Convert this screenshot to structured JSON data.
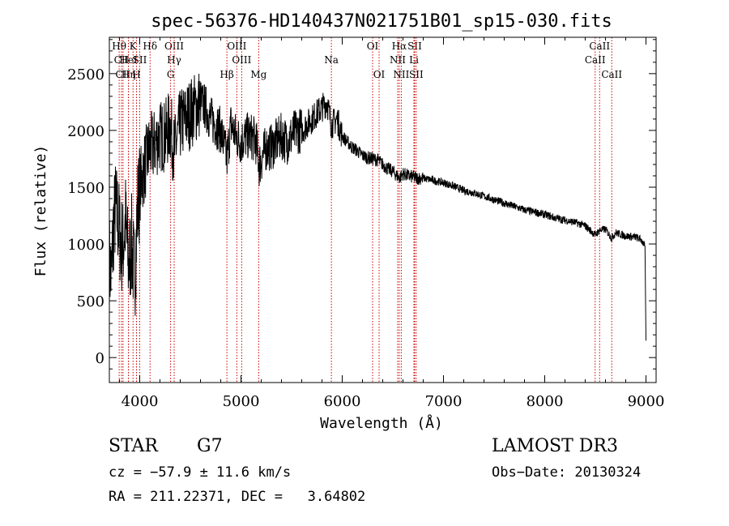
{
  "chart_data": {
    "type": "line",
    "title": "spec-56376-HD140437N021751B01_sp15-030.fits",
    "xlabel": "Wavelength (Å)",
    "ylabel": "Flux (relative)",
    "xlim": [
      3700,
      9100
    ],
    "ylim": [
      -220,
      2820
    ],
    "x_ticks": [
      4000,
      5000,
      6000,
      7000,
      8000,
      9000
    ],
    "y_ticks": [
      0,
      500,
      1000,
      1500,
      2000,
      2500
    ],
    "grid": false,
    "series": [
      {
        "name": "flux",
        "x": [
          3700,
          3720,
          3740,
          3760,
          3780,
          3800,
          3830,
          3860,
          3890,
          3920,
          3950,
          3980,
          4010,
          4040,
          4070,
          4100,
          4130,
          4160,
          4200,
          4250,
          4300,
          4340,
          4400,
          4450,
          4500,
          4550,
          4600,
          4650,
          4700,
          4750,
          4800,
          4861,
          4900,
          4950,
          5000,
          5050,
          5100,
          5150,
          5180,
          5250,
          5300,
          5350,
          5400,
          5450,
          5500,
          5550,
          5600,
          5650,
          5700,
          5750,
          5800,
          5850,
          5893,
          5950,
          6000,
          6050,
          6100,
          6150,
          6200,
          6250,
          6300,
          6350,
          6400,
          6450,
          6500,
          6563,
          6600,
          6650,
          6700,
          6750,
          6800,
          6900,
          7000,
          7100,
          7200,
          7300,
          7400,
          7500,
          7600,
          7700,
          7800,
          7900,
          8000,
          8100,
          8200,
          8300,
          8400,
          8498,
          8542,
          8600,
          8662,
          8700,
          8800,
          8900,
          8950,
          8990,
          9000
        ],
        "y": [
          850,
          700,
          1150,
          1300,
          1250,
          1100,
          950,
          1200,
          800,
          1000,
          700,
          1350,
          1550,
          1650,
          1750,
          1850,
          1850,
          1900,
          1950,
          1950,
          2050,
          1800,
          2050,
          2100,
          2150,
          2200,
          2250,
          2200,
          2100,
          2050,
          2000,
          1750,
          2050,
          1950,
          1900,
          1950,
          1950,
          1900,
          1700,
          1850,
          1850,
          1900,
          1950,
          1900,
          1950,
          2000,
          2000,
          2050,
          2100,
          2150,
          2200,
          2250,
          2050,
          2100,
          1950,
          1900,
          1850,
          1820,
          1780,
          1760,
          1750,
          1740,
          1700,
          1660,
          1640,
          1580,
          1620,
          1600,
          1590,
          1580,
          1580,
          1560,
          1540,
          1510,
          1470,
          1450,
          1420,
          1390,
          1360,
          1330,
          1300,
          1280,
          1260,
          1230,
          1210,
          1190,
          1160,
          1080,
          1120,
          1130,
          1050,
          1100,
          1070,
          1060,
          1040,
          980,
          150
        ]
      }
    ],
    "line_markers": [
      {
        "name": "Hθ",
        "wavelength": 3797,
        "row": 1
      },
      {
        "name": "CII",
        "wavelength": 3820,
        "row": 2
      },
      {
        "name": "CII",
        "wavelength": 3835,
        "row": 3
      },
      {
        "name": "Hη",
        "wavelength": 3889,
        "row": 3
      },
      {
        "name": "HeI",
        "wavelength": 3888,
        "row": 2
      },
      {
        "name": "K",
        "wavelength": 3934,
        "row": 1
      },
      {
        "name": "SII",
        "wavelength": 4000,
        "row": 2
      },
      {
        "name": "H",
        "wavelength": 3968,
        "row": 3
      },
      {
        "name": "Hδ",
        "wavelength": 4102,
        "row": 1
      },
      {
        "name": "OIII",
        "wavelength": 4340,
        "row": 1
      },
      {
        "name": "Hγ",
        "wavelength": 4340,
        "row": 2
      },
      {
        "name": "G",
        "wavelength": 4305,
        "row": 3
      },
      {
        "name": "Hβ",
        "wavelength": 4861,
        "row": 3
      },
      {
        "name": "OIII",
        "wavelength": 4959,
        "row": 1
      },
      {
        "name": "OIII",
        "wavelength": 5007,
        "row": 2
      },
      {
        "name": "Mg",
        "wavelength": 5175,
        "row": 3
      },
      {
        "name": "Na",
        "wavelength": 5893,
        "row": 2
      },
      {
        "name": "OI",
        "wavelength": 6300,
        "row": 1
      },
      {
        "name": "OI",
        "wavelength": 6364,
        "row": 3
      },
      {
        "name": "Hα",
        "wavelength": 6563,
        "row": 1
      },
      {
        "name": "SII",
        "wavelength": 6716,
        "row": 1
      },
      {
        "name": "NII",
        "wavelength": 6548,
        "row": 2
      },
      {
        "name": "Li",
        "wavelength": 6708,
        "row": 2
      },
      {
        "name": "NII",
        "wavelength": 6583,
        "row": 3
      },
      {
        "name": "SII",
        "wavelength": 6731,
        "row": 3
      },
      {
        "name": "CaII",
        "wavelength": 8542,
        "row": 1
      },
      {
        "name": "CaII",
        "wavelength": 8498,
        "row": 2
      },
      {
        "name": "CaII",
        "wavelength": 8662,
        "row": 3
      }
    ]
  },
  "footer": {
    "class_label": "STAR",
    "subclass": "G7",
    "survey": "LAMOST DR3",
    "redshift": "cz = −57.9 ± 11.6 km/s",
    "obs_date": "Obs−Date: 20130324",
    "coords": "RA = 211.22371, DEC =   3.64802"
  },
  "colors": {
    "line": "#000000",
    "marker": "#cc0000",
    "axis": "#000000"
  }
}
